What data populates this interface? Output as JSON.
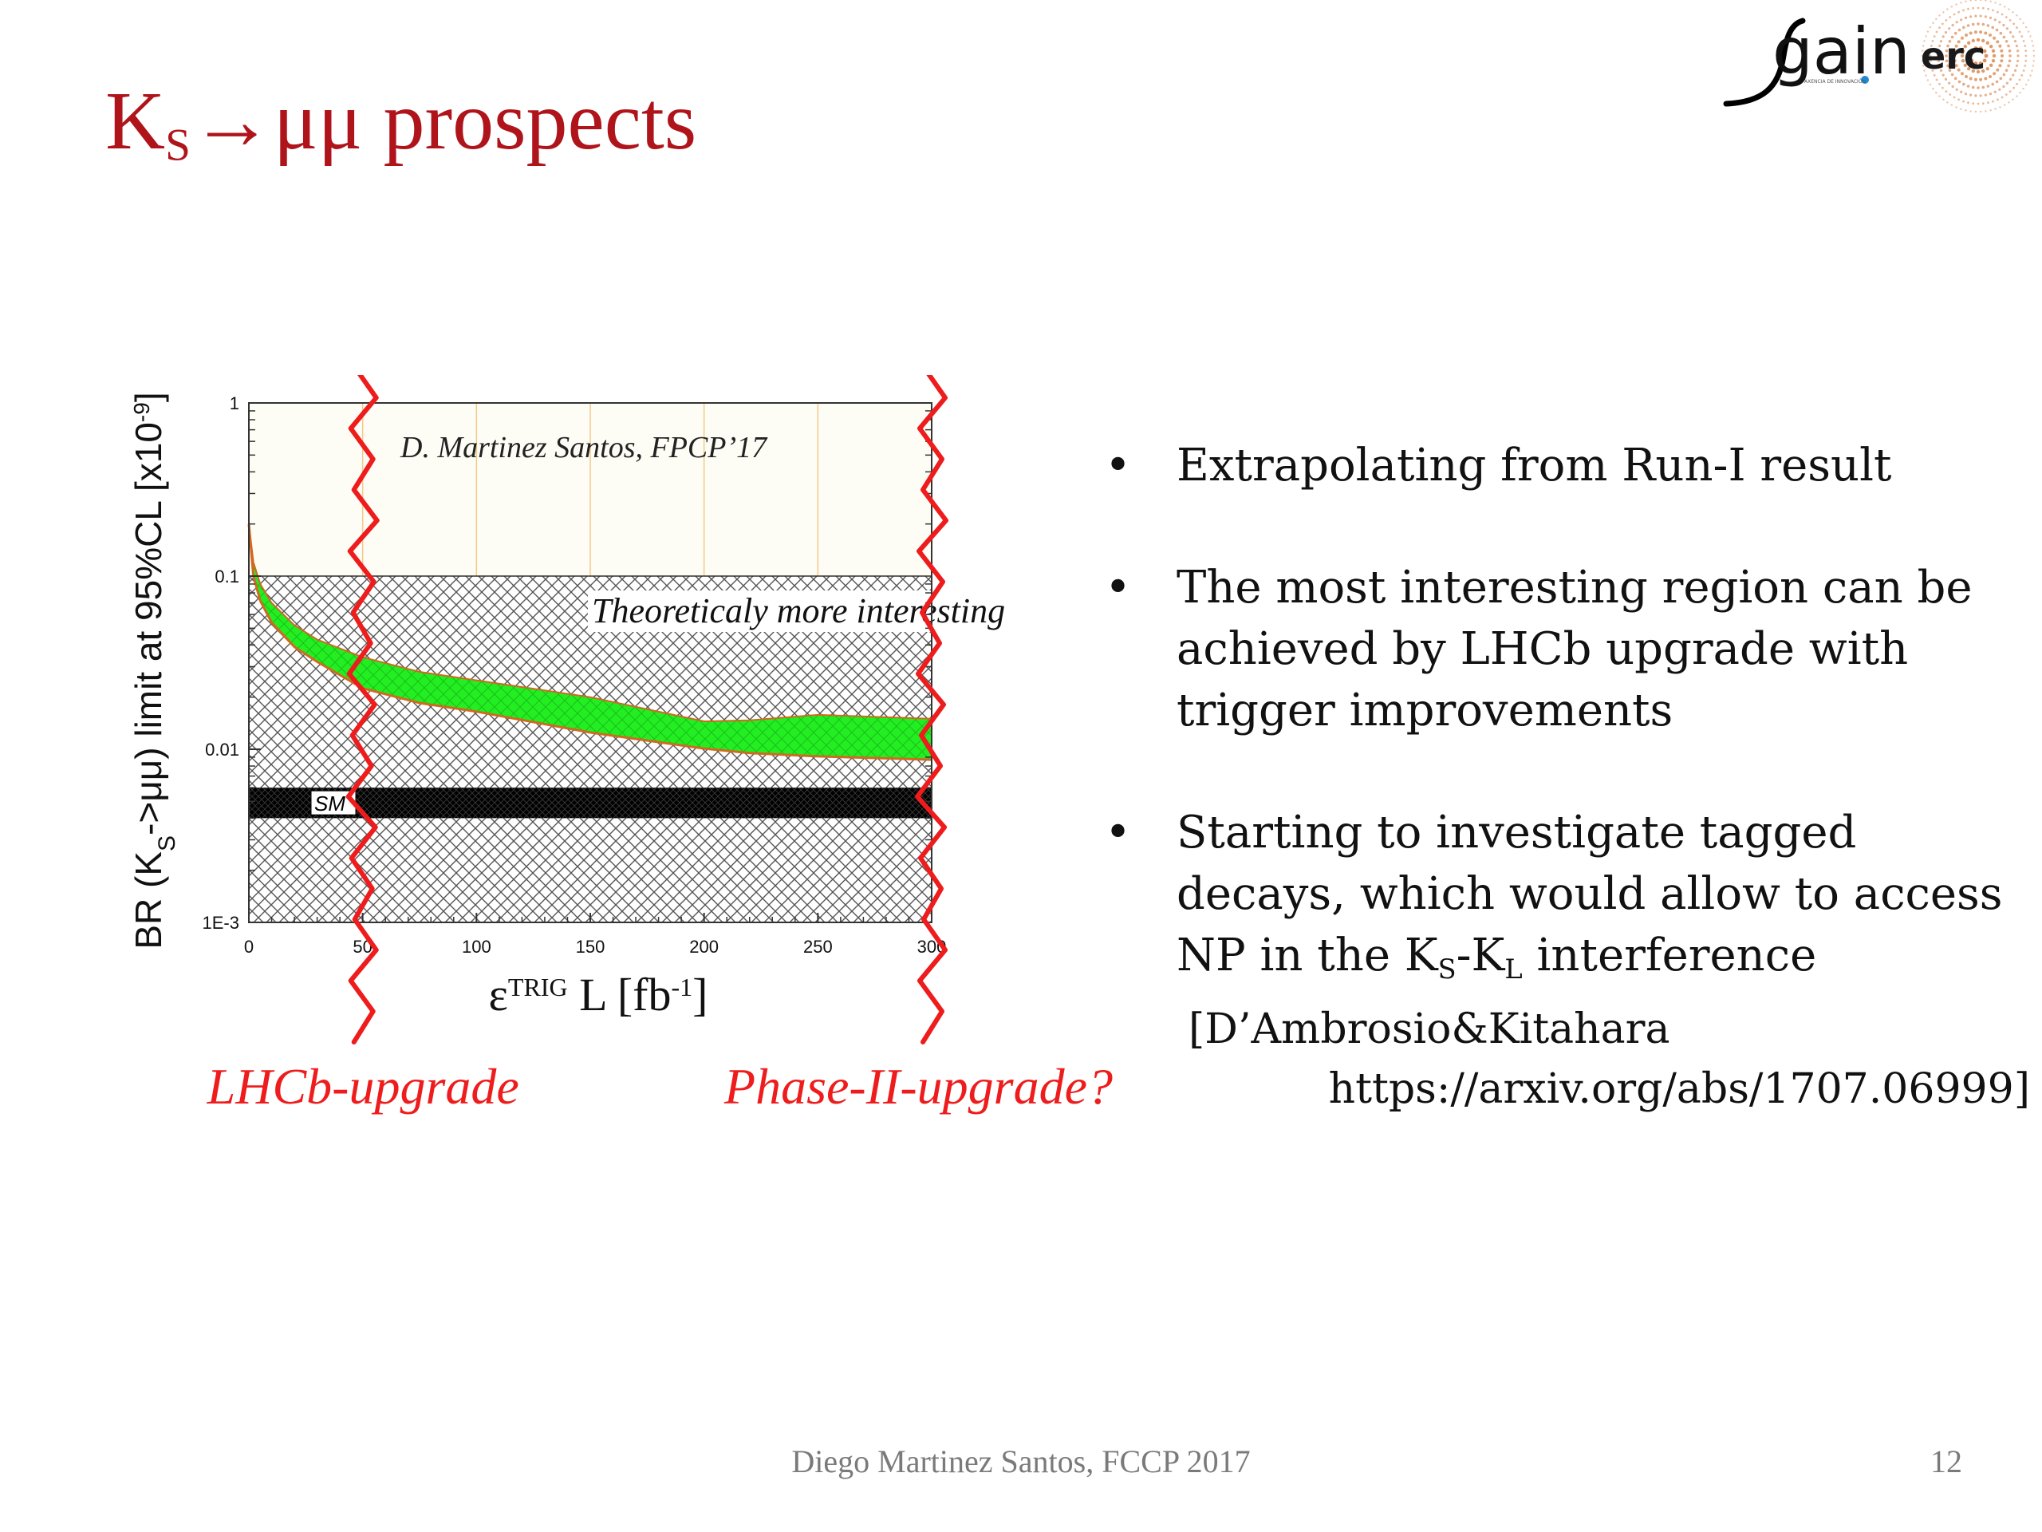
{
  "slide": {
    "title_main": "K",
    "title_sub": "S",
    "title_rest": "→μμ prospects",
    "logo_text_gain": "gain",
    "logo_text_gain_tag": "AXENCIA DE INNOVACIÓN",
    "logo_text_erc": "erc",
    "footer_author": "Diego Martinez Santos, FCCP 2017",
    "page_number": "12"
  },
  "chart_data": {
    "type": "area",
    "ylabel": "BR (K_S->μμ) limit at 95%CL [x10^-9]",
    "xlabel": "ε^TRIG L [fb^-1]",
    "x_ticks": [
      "0",
      "50",
      "100",
      "150",
      "200",
      "250",
      "300"
    ],
    "y_ticks": [
      "1E-3",
      "0.01",
      "0.1",
      "1"
    ],
    "y_scale": "log",
    "xlim": [
      0,
      300
    ],
    "ylim": [
      0.001,
      1
    ],
    "grid": true,
    "annotations": {
      "credit": "D. Martinez Santos, FPCP’17",
      "region": "Theoreticaly more interesting",
      "sm": "SM"
    },
    "sm_band": [
      0.004,
      0.006
    ],
    "interesting_region": [
      0.001,
      0.1
    ],
    "band_upper": {
      "x": [
        0,
        2,
        5,
        10,
        20,
        30,
        50,
        75,
        100,
        150,
        200,
        220,
        250,
        300
      ],
      "y": [
        0.2,
        0.12,
        0.09,
        0.07,
        0.052,
        0.043,
        0.034,
        0.028,
        0.025,
        0.02,
        0.0145,
        0.0147,
        0.0158,
        0.015
      ]
    },
    "band_lower": {
      "x": [
        0,
        2,
        5,
        10,
        20,
        30,
        50,
        75,
        100,
        150,
        200,
        220,
        250,
        300
      ],
      "y": [
        0.2,
        0.1,
        0.072,
        0.054,
        0.039,
        0.032,
        0.0225,
        0.0185,
        0.0165,
        0.0125,
        0.0101,
        0.0095,
        0.0091,
        0.0087
      ]
    },
    "markers": [
      {
        "x": 50,
        "label": "LHCb-upgrade"
      },
      {
        "x": 300,
        "label": "Phase-II-upgrade?"
      }
    ]
  },
  "bullets": [
    {
      "text": "Extrapolating from Run-I result"
    },
    {
      "text": "The most interesting region can be achieved by LHCb upgrade with trigger improvements"
    },
    {
      "pre": "Starting to investigate tagged decays, which would allow to access NP in the K",
      "sub1": "S",
      "mid": "-K",
      "sub2": "L",
      "post": " interference",
      "ref_line1": "[D’Ambrosio&Kitahara",
      "ref_line2": "https://arxiv.org/abs/1707.06999]"
    }
  ],
  "bullet_symbol": "•",
  "colors": {
    "title": "#b0141b",
    "band_fill": "#22ee22",
    "band_edge": "#d2691e",
    "grid": "#f4c98a",
    "marker": "#ee1c1c",
    "sm_band": "#000000"
  }
}
